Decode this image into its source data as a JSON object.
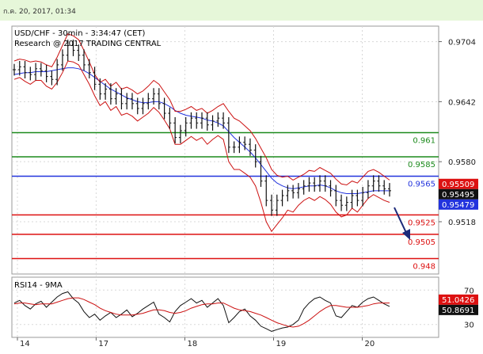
{
  "timestamp": "ก.ค. 20, 2017, 01:34",
  "chart_data": {
    "type": "line",
    "title": "USD/CHF - 30min - 3:34:47 (CET)",
    "subtitle": "Research @ 2017 TRADING CENTRAL",
    "x_ticks": [
      "14",
      "17",
      "18",
      "19",
      "20"
    ],
    "y_ticks": [
      "0.9704",
      "0.9642",
      "0.9580",
      "0.9518"
    ],
    "ylim": [
      0.9464,
      0.972
    ],
    "levels": [
      {
        "label": "0.961",
        "value": 0.961,
        "color": "#1c8a1c"
      },
      {
        "label": "0.9585",
        "value": 0.9585,
        "color": "#1c8a1c"
      },
      {
        "label": "0.9565",
        "value": 0.9565,
        "color": "#2233dd"
      },
      {
        "label": "0.9525",
        "value": 0.9525,
        "color": "#dd1111"
      },
      {
        "label": "0.9505",
        "value": 0.9505,
        "color": "#dd1111"
      },
      {
        "label": "0.948",
        "value": 0.948,
        "color": "#dd1111"
      }
    ],
    "price_tags": [
      {
        "label": "0.95509",
        "value": 0.95509,
        "bg": "#dd1111"
      },
      {
        "label": "0.95495",
        "value": 0.95495,
        "bg": "#111111"
      },
      {
        "label": "0.95479",
        "value": 0.95479,
        "bg": "#2233dd"
      }
    ],
    "series": [
      {
        "type": "ohlc",
        "color": "#111111",
        "values": [
          0.9675,
          0.9678,
          0.9672,
          0.967,
          0.9676,
          0.9674,
          0.9668,
          0.9665,
          0.968,
          0.969,
          0.97,
          0.9695,
          0.969,
          0.968,
          0.9672,
          0.966,
          0.965,
          0.9655,
          0.9645,
          0.965,
          0.964,
          0.9645,
          0.964,
          0.9635,
          0.964,
          0.9645,
          0.965,
          0.964,
          0.963,
          0.962,
          0.9605,
          0.9612,
          0.962,
          0.9625,
          0.962,
          0.9625,
          0.9618,
          0.9622,
          0.9625,
          0.962,
          0.9595,
          0.9595,
          0.96,
          0.9598,
          0.9592,
          0.958,
          0.956,
          0.954,
          0.953,
          0.954,
          0.9545,
          0.955,
          0.9548,
          0.9552,
          0.9555,
          0.9558,
          0.9555,
          0.956,
          0.9555,
          0.955,
          0.954,
          0.9535,
          0.9538,
          0.9545,
          0.954,
          0.9548,
          0.9555,
          0.956,
          0.9555,
          0.9552,
          0.955
        ]
      },
      {
        "type": "line",
        "color": "#2233dd",
        "values": [
          0.967,
          0.9671,
          0.9672,
          0.9672,
          0.9673,
          0.9673,
          0.9673,
          0.9674,
          0.9675,
          0.9676,
          0.9677,
          0.9677,
          0.9676,
          0.9674,
          0.9671,
          0.9667,
          0.9663,
          0.9659,
          0.9655,
          0.9652,
          0.9649,
          0.9646,
          0.9644,
          0.9642,
          0.9641,
          0.9641,
          0.9642,
          0.9642,
          0.964,
          0.9637,
          0.9633,
          0.963,
          0.9628,
          0.9627,
          0.9626,
          0.9625,
          0.9623,
          0.9622,
          0.962,
          0.9617,
          0.9611,
          0.9605,
          0.96,
          0.9595,
          0.959,
          0.9584,
          0.9577,
          0.957,
          0.9563,
          0.9558,
          0.9555,
          0.9553,
          0.9552,
          0.9553,
          0.9554,
          0.9555,
          0.9555,
          0.9556,
          0.9555,
          0.9553,
          0.955,
          0.9548,
          0.9547,
          0.9547,
          0.9547,
          0.9548,
          0.9549,
          0.955,
          0.955,
          0.955,
          0.955
        ]
      },
      {
        "type": "line",
        "color": "#cc1111",
        "values": [
          0.9684,
          0.9686,
          0.9685,
          0.9683,
          0.9684,
          0.9683,
          0.968,
          0.9678,
          0.9688,
          0.97,
          0.9712,
          0.971,
          0.9706,
          0.9695,
          0.9683,
          0.967,
          0.9662,
          0.9665,
          0.9658,
          0.9662,
          0.9655,
          0.9657,
          0.9654,
          0.965,
          0.9653,
          0.9658,
          0.9664,
          0.966,
          0.9652,
          0.9644,
          0.9632,
          0.9632,
          0.9634,
          0.9637,
          0.9633,
          0.9635,
          0.963,
          0.9633,
          0.9637,
          0.964,
          0.9632,
          0.9625,
          0.9622,
          0.9617,
          0.9612,
          0.9604,
          0.9594,
          0.9584,
          0.9572,
          0.9566,
          0.9564,
          0.9565,
          0.9561,
          0.9564,
          0.9567,
          0.9571,
          0.957,
          0.9574,
          0.9571,
          0.9568,
          0.9562,
          0.9557,
          0.9556,
          0.956,
          0.9558,
          0.9564,
          0.957,
          0.9572,
          0.9569,
          0.9565,
          0.9561
        ]
      },
      {
        "type": "line",
        "color": "#cc1111",
        "values": [
          0.9665,
          0.9667,
          0.9663,
          0.966,
          0.9664,
          0.9664,
          0.9658,
          0.9655,
          0.9662,
          0.9672,
          0.9684,
          0.9683,
          0.968,
          0.967,
          0.966,
          0.9648,
          0.9638,
          0.9642,
          0.9633,
          0.9637,
          0.9628,
          0.963,
          0.9627,
          0.9622,
          0.9626,
          0.963,
          0.9636,
          0.9631,
          0.9623,
          0.9614,
          0.9598,
          0.9598,
          0.9602,
          0.9606,
          0.9602,
          0.9605,
          0.9598,
          0.9603,
          0.9607,
          0.9603,
          0.958,
          0.9572,
          0.9572,
          0.9568,
          0.9564,
          0.9555,
          0.9538,
          0.9518,
          0.9508,
          0.9515,
          0.9522,
          0.953,
          0.9528,
          0.9535,
          0.954,
          0.9543,
          0.954,
          0.9544,
          0.9541,
          0.9536,
          0.9528,
          0.9523,
          0.9525,
          0.9532,
          0.9528,
          0.9535,
          0.9542,
          0.9546,
          0.9543,
          0.954,
          0.9538
        ]
      }
    ],
    "rsi": {
      "label": "RSI14 - 9MA",
      "y_ticks": [
        "70",
        "30"
      ],
      "ylim": [
        15,
        85
      ],
      "tags": [
        {
          "label": "51.0426",
          "value": 51.0426,
          "bg": "#dd1111"
        },
        {
          "label": "50.8691",
          "value": 50.8691,
          "bg": "#111111"
        }
      ],
      "series": [
        {
          "color": "#111111",
          "values": [
            55,
            58,
            52,
            48,
            54,
            57,
            50,
            56,
            62,
            66,
            68,
            60,
            55,
            45,
            38,
            42,
            35,
            40,
            44,
            38,
            42,
            47,
            39,
            43,
            48,
            52,
            56,
            42,
            38,
            33,
            45,
            52,
            56,
            60,
            55,
            58,
            50,
            55,
            60,
            52,
            32,
            38,
            45,
            48,
            40,
            35,
            28,
            25,
            22,
            24,
            26,
            27,
            30,
            35,
            48,
            55,
            60,
            62,
            58,
            55,
            40,
            38,
            45,
            52,
            50,
            56,
            60,
            62,
            58,
            54,
            51
          ]
        },
        {
          "color": "#cc1111",
          "values": [
            54,
            55,
            55,
            54,
            53,
            54,
            54,
            54,
            56,
            58,
            60,
            61,
            61,
            59,
            56,
            53,
            49,
            46,
            44,
            42,
            41,
            41,
            41,
            42,
            43,
            45,
            47,
            47,
            46,
            44,
            43,
            44,
            46,
            49,
            51,
            53,
            54,
            54,
            55,
            55,
            52,
            49,
            47,
            46,
            45,
            43,
            41,
            38,
            35,
            32,
            30,
            28,
            27,
            28,
            31,
            35,
            40,
            45,
            49,
            52,
            52,
            51,
            50,
            50,
            50,
            51,
            52,
            54,
            55,
            55,
            55
          ]
        }
      ]
    }
  }
}
